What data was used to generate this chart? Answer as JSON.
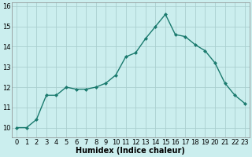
{
  "x": [
    0,
    1,
    2,
    3,
    4,
    5,
    6,
    7,
    8,
    9,
    10,
    11,
    12,
    13,
    14,
    15,
    16,
    17,
    18,
    19,
    20,
    21,
    22,
    23
  ],
  "y": [
    10.0,
    10.0,
    10.4,
    11.6,
    11.6,
    12.0,
    11.9,
    11.9,
    12.0,
    12.2,
    12.6,
    13.5,
    13.7,
    14.4,
    15.0,
    15.6,
    14.6,
    14.5,
    14.1,
    13.8,
    13.2,
    12.2,
    11.6,
    11.2
  ],
  "line_color": "#1a7a6e",
  "marker": "D",
  "marker_size": 2.0,
  "bg_color": "#cbeeee",
  "grid_color": "#aacfcf",
  "xlabel": "Humidex (Indice chaleur)",
  "xlabel_fontsize": 7,
  "ylim": [
    9.5,
    16.2
  ],
  "yticks": [
    10,
    11,
    12,
    13,
    14,
    15,
    16
  ],
  "ytick_labels": [
    "10",
    "11",
    "12",
    "13",
    "14",
    "15",
    "16"
  ],
  "xticks": [
    0,
    1,
    2,
    3,
    4,
    5,
    6,
    7,
    8,
    9,
    10,
    11,
    12,
    13,
    14,
    15,
    16,
    17,
    18,
    19,
    20,
    21,
    22,
    23
  ],
  "xtick_labels": [
    "0",
    "1",
    "2",
    "3",
    "4",
    "5",
    "6",
    "7",
    "8",
    "9",
    "10",
    "11",
    "12",
    "13",
    "14",
    "15",
    "16",
    "17",
    "18",
    "19",
    "20",
    "21",
    "22",
    "23"
  ],
  "tick_fontsize": 6,
  "linewidth": 1.0
}
